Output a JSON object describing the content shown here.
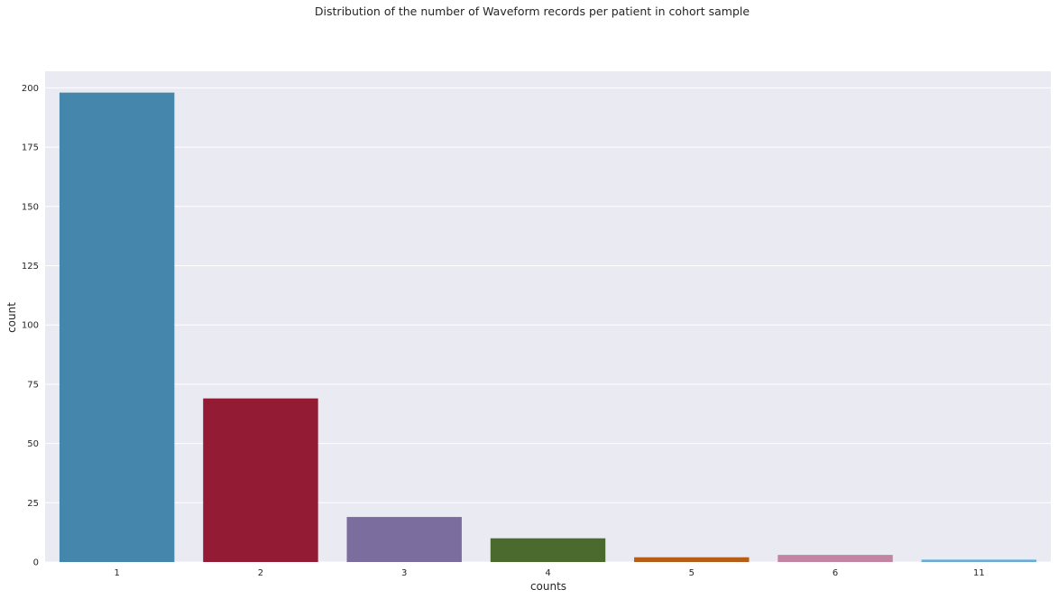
{
  "chart_data": {
    "type": "bar",
    "title": "Distribution of the number of Waveform records per patient in cohort sample",
    "xlabel": "counts",
    "ylabel": "count",
    "categories": [
      "1",
      "2",
      "3",
      "4",
      "5",
      "6",
      "11"
    ],
    "values": [
      198,
      69,
      19,
      10,
      2,
      3,
      1
    ],
    "colors": [
      "#4586ac",
      "#931b33",
      "#7b6d9d",
      "#4b6b2e",
      "#b55d19",
      "#c383a3",
      "#6aacd8"
    ],
    "ylim": [
      0,
      207
    ],
    "yticks": [
      0,
      25,
      50,
      75,
      100,
      125,
      150,
      175,
      200
    ],
    "grid": true,
    "grid_axis": "y",
    "background": "#eaeaf2",
    "gridline_color": "#ffffff",
    "legend": "none"
  }
}
